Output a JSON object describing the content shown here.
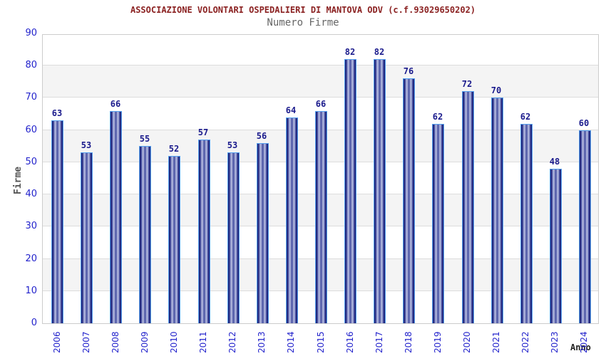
{
  "header": {
    "title": "ASSOCIAZIONE VOLONTARI OSPEDALIERI DI MANTOVA ODV (c.f.93029650202)",
    "subtitle": "Numero Firme"
  },
  "chart_data": {
    "type": "bar",
    "title": "Numero Firme",
    "categories": [
      "2006",
      "2007",
      "2008",
      "2009",
      "2010",
      "2011",
      "2012",
      "2013",
      "2014",
      "2015",
      "2016",
      "2017",
      "2018",
      "2019",
      "2020",
      "2021",
      "2022",
      "2023",
      "2024"
    ],
    "values": [
      63,
      53,
      66,
      55,
      52,
      57,
      53,
      56,
      64,
      66,
      82,
      82,
      76,
      62,
      72,
      70,
      62,
      48,
      60
    ],
    "xlabel": "Anno",
    "ylabel": "Firme",
    "ylim": [
      0,
      90
    ],
    "ytick_step": 10,
    "yticks": [
      "0",
      "10",
      "20",
      "30",
      "40",
      "50",
      "60",
      "70",
      "80",
      "90"
    ],
    "grid": true,
    "legend": false,
    "bands_alternating": true
  },
  "colors": {
    "title": "#8b2222",
    "subtitle": "#666666",
    "axis_labels": "#2323cc",
    "value_labels": "#1a1a8c",
    "bar_edge": "#171d6e",
    "bar_highlight": "#c0c5e6",
    "bar_border": "#55a0f0",
    "band": "#f4f4f4",
    "gridline": "#dddddd",
    "plot_border": "#cccccc",
    "background": "#ffffff"
  }
}
